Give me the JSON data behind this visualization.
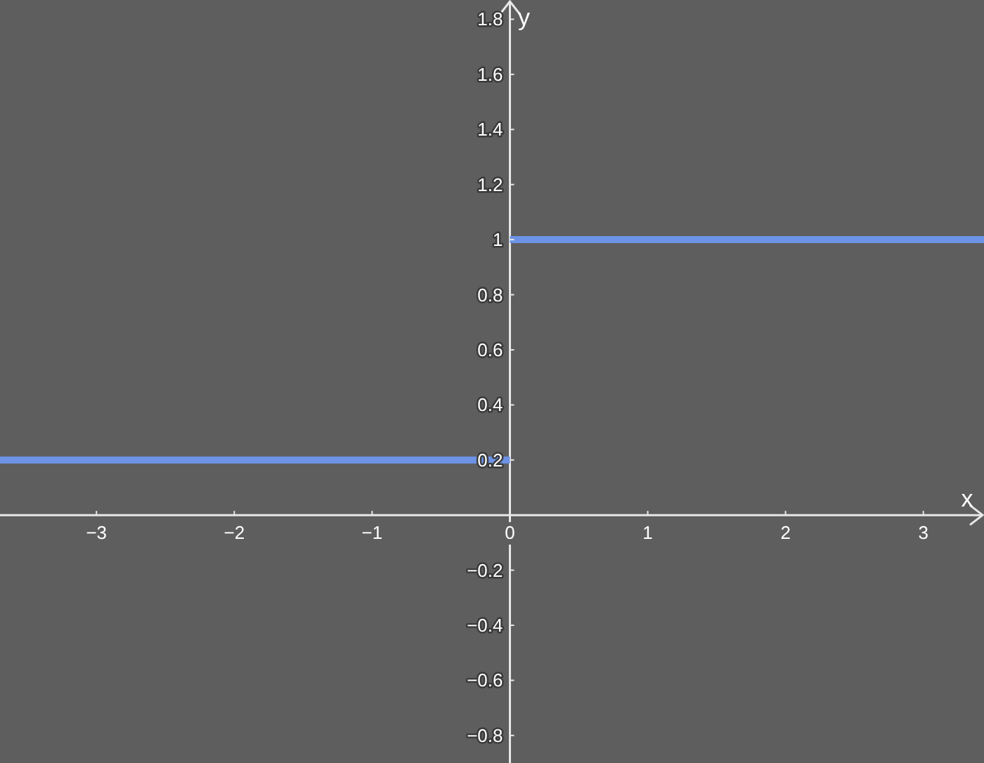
{
  "chart_data": {
    "type": "line",
    "xlabel": "x",
    "ylabel": "y",
    "xlim": [
      -3.7,
      3.44
    ],
    "ylim": [
      -0.9,
      1.87
    ],
    "xticks": [
      {
        "value": -3,
        "label": "−3"
      },
      {
        "value": -2,
        "label": "−2"
      },
      {
        "value": -1,
        "label": "−1"
      },
      0,
      1,
      2,
      3
    ],
    "yticks": [
      {
        "value": -0.8,
        "label": "−0.8"
      },
      {
        "value": -0.6,
        "label": "−0.6"
      },
      {
        "value": -0.4,
        "label": "−0.4"
      },
      {
        "value": -0.2,
        "label": "−0.2"
      },
      0.2,
      0.4,
      0.6,
      0.8,
      1,
      1.2,
      1.4,
      1.6,
      1.8
    ],
    "grid": false,
    "marker": "none",
    "line_style": "solid",
    "series": [
      {
        "color": "#6d93e6",
        "x": [
          -3.7,
          0
        ],
        "values": [
          0.2,
          0.2
        ]
      },
      {
        "color": "#6d93e6",
        "x": [
          0,
          3.44
        ],
        "values": [
          1,
          1
        ]
      }
    ]
  }
}
